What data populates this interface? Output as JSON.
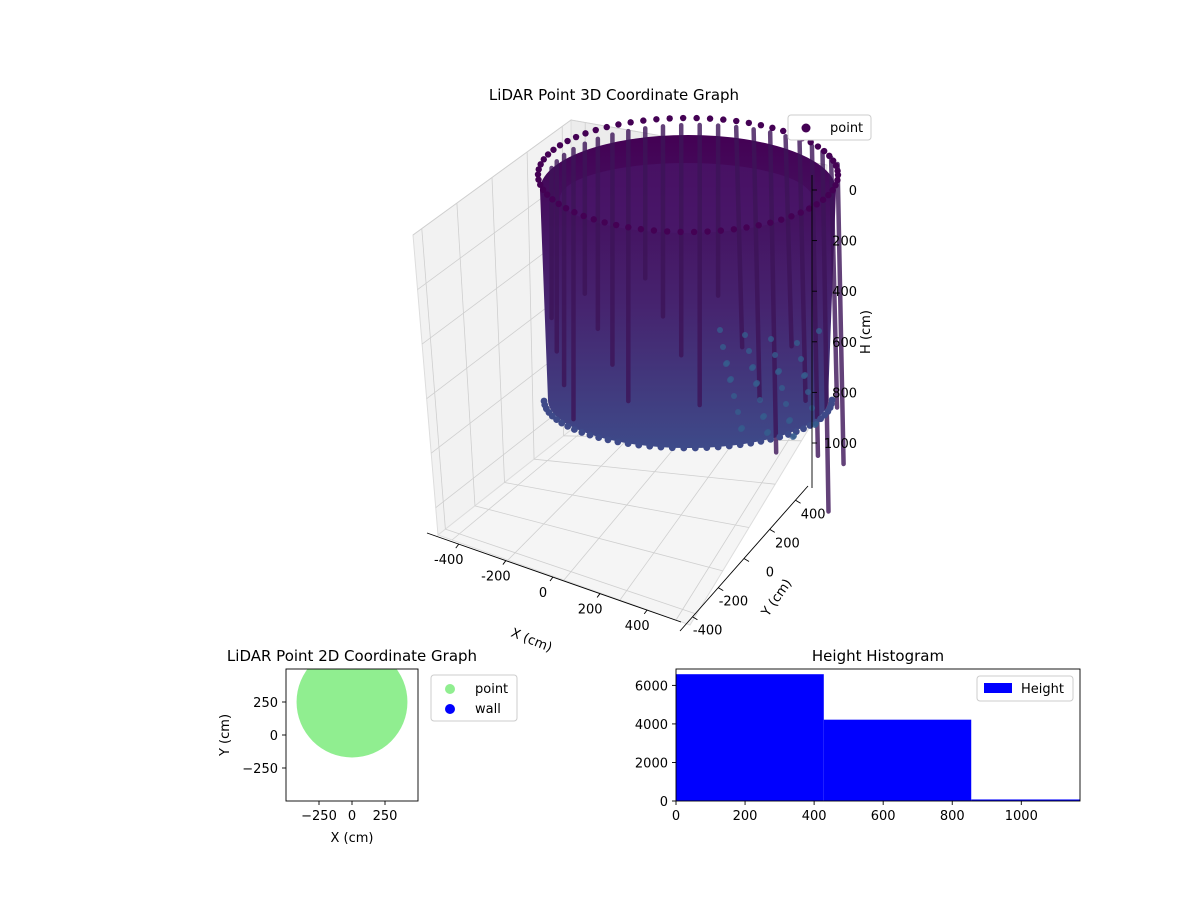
{
  "chart_data": [
    {
      "type": "scatter3d",
      "title": "LiDAR Point 3D Coordinate Graph",
      "xlabel": "X (cm)",
      "ylabel": "Y (cm)",
      "zlabel": "H (cm)",
      "x_ticks": [
        -400,
        -200,
        0,
        200,
        400
      ],
      "y_ticks": [
        -400,
        -200,
        0,
        200,
        400
      ],
      "z_ticks": [
        0,
        200,
        400,
        600,
        800,
        1000
      ],
      "xlim": [
        -450,
        450
      ],
      "ylim": [
        -450,
        450
      ],
      "zlim": [
        1100,
        0
      ],
      "z_inverted": true,
      "grid": true,
      "legend": {
        "position": "top-right",
        "entries": [
          {
            "label": "point",
            "color": "#440154"
          }
        ]
      },
      "series": [
        {
          "name": "point",
          "shape": "cylinder-wall",
          "center": [
            0,
            60
          ],
          "radius": 330,
          "z_range": [
            0,
            1050
          ],
          "colormap": "viridis",
          "color_top": "#440154",
          "color_bottom": "#3e4a89"
        }
      ]
    },
    {
      "type": "scatter",
      "title": "LiDAR Point 2D Coordinate Graph",
      "xlabel": "X (cm)",
      "ylabel": "Y (cm)",
      "x_ticks": [
        -250,
        0,
        250
      ],
      "y_ticks": [
        -250,
        0,
        250
      ],
      "xlim": [
        -500,
        500
      ],
      "ylim": [
        -500,
        500
      ],
      "legend": {
        "position": "outside-right",
        "entries": [
          {
            "label": "point",
            "color": "#90ee90"
          },
          {
            "label": "wall",
            "color": "#0000ff"
          }
        ]
      },
      "series": [
        {
          "name": "point",
          "color": "#90ee90",
          "shape": "filled-disc",
          "center": [
            0,
            250
          ],
          "radius": 420
        },
        {
          "name": "wall",
          "color": "#0000ff",
          "values": []
        }
      ]
    },
    {
      "type": "histogram",
      "title": "Height Histogram",
      "xlabel": "",
      "ylabel": "",
      "x_ticks": [
        0,
        200,
        400,
        600,
        800,
        1000
      ],
      "y_ticks": [
        0,
        2000,
        4000,
        6000
      ],
      "xlim": [
        0,
        1170
      ],
      "ylim": [
        0,
        6850
      ],
      "color": "#0000ff",
      "legend": {
        "position": "top-right",
        "entries": [
          {
            "label": "Height",
            "color": "#0000ff"
          }
        ]
      },
      "bins": [
        {
          "x0": 0,
          "x1": 428,
          "value": 6580
        },
        {
          "x0": 428,
          "x1": 855,
          "value": 4220
        },
        {
          "x0": 855,
          "x1": 1170,
          "value": 80
        }
      ]
    }
  ]
}
